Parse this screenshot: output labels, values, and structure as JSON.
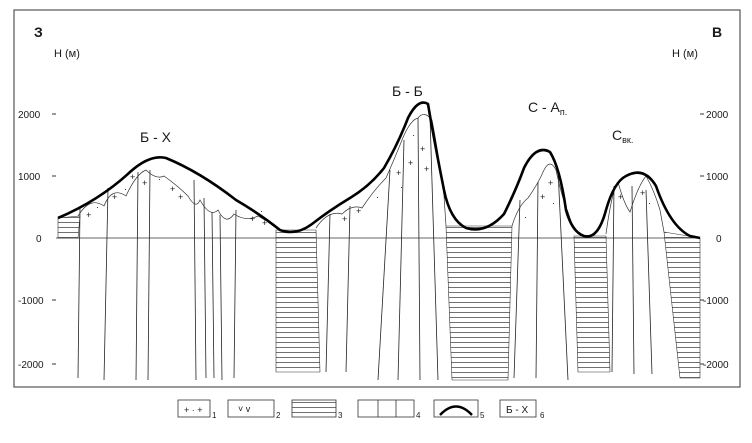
{
  "header": {
    "left_dir": "З",
    "right_dir": "В"
  },
  "axes": {
    "left_unit": "Н (м)",
    "right_unit": "Н (м)",
    "ticks": [
      {
        "value": 2000,
        "label": "2000"
      },
      {
        "value": 1000,
        "label": "1000"
      },
      {
        "value": 0,
        "label": "0"
      },
      {
        "value": -1000,
        "label": "-1000"
      },
      {
        "value": -2000,
        "label": "-2000"
      }
    ]
  },
  "profile_labels": [
    {
      "id": "bx",
      "text": "Б - Х"
    },
    {
      "id": "bb",
      "text": "Б - Б"
    },
    {
      "id": "sa",
      "text": "С - А",
      "sub": "п."
    },
    {
      "id": "sv",
      "text": "С",
      "sub": "вк."
    }
  ],
  "legend": [
    {
      "num": "1",
      "pattern": "plus-dot"
    },
    {
      "num": "2",
      "pattern": "v"
    },
    {
      "num": "3",
      "pattern": "hatch"
    },
    {
      "num": "4",
      "pattern": "vlines"
    },
    {
      "num": "5",
      "pattern": "arc"
    },
    {
      "num": "6",
      "pattern": "label",
      "text": "Б - Х"
    }
  ],
  "colors": {
    "ink": "#1a1a1a",
    "frame": "#555555",
    "paper": "#ffffff"
  }
}
